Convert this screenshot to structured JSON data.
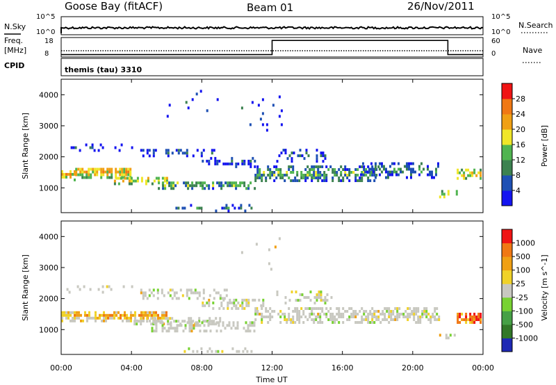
{
  "header": {
    "title_left": "Goose Bay (fitACF)",
    "title_center": "Beam 01",
    "title_right": "26/Nov/2011"
  },
  "top_panels": {
    "nsky": {
      "label": "N.Sky",
      "left_ticks": [
        "10^5",
        "10^0"
      ],
      "right_label": "N.Search",
      "right_ticks": [
        "10^5",
        "10^0"
      ]
    },
    "freq": {
      "label_line1": "Freq.",
      "label_line2": "[MHz]",
      "left_ticks": [
        "18",
        "8"
      ],
      "right_label": "Nave",
      "right_ticks": [
        "60",
        "0"
      ],
      "steps": [
        {
          "start_hr": 0,
          "end_hr": 12,
          "level": 0.12
        },
        {
          "start_hr": 12,
          "end_hr": 22,
          "level": 0.85
        },
        {
          "start_hr": 22,
          "end_hr": 24,
          "level": 0.12
        }
      ]
    },
    "cpid": {
      "label": "CPID",
      "text": "themis (tau) 3310"
    }
  },
  "chart_data": [
    {
      "type": "heatmap",
      "name": "power",
      "ylabel": "Slant Range [km]",
      "ylim": [
        200,
        4500
      ],
      "yticks": [
        "1000",
        "2000",
        "3000",
        "4000"
      ],
      "xlim": [
        0,
        24
      ],
      "colorbar": {
        "label": "Power [dB]",
        "ticks": [
          "4",
          "8",
          "12",
          "16",
          "20",
          "24",
          "28"
        ],
        "colors": [
          "#1414f0",
          "#1e50b4",
          "#3c8250",
          "#50b450",
          "#f0e628",
          "#f0a014",
          "#f07814",
          "#f01414"
        ]
      },
      "bands": [
        {
          "start_hr": 0.0,
          "end_hr": 0.8,
          "center_km": 1450,
          "width_km": 300,
          "density": 0.9,
          "level": 0.7
        },
        {
          "start_hr": 0.8,
          "end_hr": 4.0,
          "center_km": 1550,
          "width_km": 350,
          "density": 0.85,
          "level": 0.65
        },
        {
          "start_hr": 3.0,
          "end_hr": 6.0,
          "center_km": 1300,
          "width_km": 250,
          "density": 0.8,
          "level": 0.6
        },
        {
          "start_hr": 5.5,
          "end_hr": 11.0,
          "center_km": 1150,
          "width_km": 250,
          "density": 0.7,
          "level": 0.45
        },
        {
          "start_hr": 4.5,
          "end_hr": 9.0,
          "center_km": 2200,
          "width_km": 250,
          "density": 0.45,
          "level": 0.2
        },
        {
          "start_hr": 0.3,
          "end_hr": 4.0,
          "center_km": 2350,
          "width_km": 200,
          "density": 0.25,
          "level": 0.15
        },
        {
          "start_hr": 8.0,
          "end_hr": 11.0,
          "center_km": 1900,
          "width_km": 350,
          "density": 0.35,
          "level": 0.2
        },
        {
          "start_hr": 11.0,
          "end_hr": 18.0,
          "center_km": 1500,
          "width_km": 450,
          "density": 0.75,
          "level": 0.4
        },
        {
          "start_hr": 17.0,
          "end_hr": 21.5,
          "center_km": 1600,
          "width_km": 450,
          "density": 0.55,
          "level": 0.3
        },
        {
          "start_hr": 12.0,
          "end_hr": 15.0,
          "center_km": 2100,
          "width_km": 400,
          "density": 0.25,
          "level": 0.2
        },
        {
          "start_hr": 21.5,
          "end_hr": 22.5,
          "center_km": 850,
          "width_km": 200,
          "density": 0.6,
          "level": 0.55
        },
        {
          "start_hr": 22.5,
          "end_hr": 24.0,
          "center_km": 1500,
          "width_km": 300,
          "density": 0.7,
          "level": 0.6
        },
        {
          "start_hr": 6.5,
          "end_hr": 11.0,
          "center_km": 400,
          "width_km": 200,
          "density": 0.35,
          "level": 0.25
        },
        {
          "start_hr": 10.0,
          "end_hr": 12.5,
          "center_km": 3500,
          "width_km": 1200,
          "density": 0.06,
          "level": 0.15
        },
        {
          "start_hr": 6.0,
          "end_hr": 9.0,
          "center_km": 3800,
          "width_km": 900,
          "density": 0.04,
          "level": 0.15
        }
      ]
    },
    {
      "type": "heatmap",
      "name": "velocity",
      "ylabel": "Slant Range [km]",
      "ylim": [
        200,
        4500
      ],
      "yticks": [
        "1000",
        "2000",
        "3000",
        "4000"
      ],
      "xlim": [
        0,
        24
      ],
      "xticks": [
        "00:00",
        "04:00",
        "08:00",
        "12:00",
        "16:00",
        "20:00",
        "00:00"
      ],
      "xlabel": "Time UT",
      "colorbar": {
        "label": "Velocity [m s^-1]",
        "ticks": [
          "1000",
          "500",
          "100",
          "25",
          "-25",
          "-100",
          "-500",
          "-1000"
        ],
        "colors": [
          "#1e28b4",
          "#327828",
          "#46a046",
          "#78d232",
          "#c8c8c0",
          "#f0d228",
          "#f0a014",
          "#f07814",
          "#f01414"
        ]
      },
      "bands": [
        {
          "start_hr": 0.0,
          "end_hr": 6.0,
          "center_km": 1500,
          "width_km": 350,
          "density": 0.85,
          "level": 0.7
        },
        {
          "start_hr": 4.0,
          "end_hr": 9.0,
          "center_km": 1350,
          "width_km": 250,
          "density": 0.6,
          "level": 0.45
        },
        {
          "start_hr": 5.0,
          "end_hr": 11.0,
          "center_km": 1150,
          "width_km": 300,
          "density": 0.6,
          "level": 0.5
        },
        {
          "start_hr": 4.5,
          "end_hr": 9.5,
          "center_km": 2200,
          "width_km": 300,
          "density": 0.45,
          "level": 0.5
        },
        {
          "start_hr": 0.3,
          "end_hr": 4.0,
          "center_km": 2350,
          "width_km": 200,
          "density": 0.2,
          "level": 0.5
        },
        {
          "start_hr": 8.0,
          "end_hr": 11.5,
          "center_km": 1900,
          "width_km": 350,
          "density": 0.45,
          "level": 0.5
        },
        {
          "start_hr": 11.0,
          "end_hr": 21.5,
          "center_km": 1500,
          "width_km": 450,
          "density": 0.7,
          "level": 0.52
        },
        {
          "start_hr": 12.0,
          "end_hr": 15.5,
          "center_km": 2100,
          "width_km": 400,
          "density": 0.3,
          "level": 0.52
        },
        {
          "start_hr": 22.5,
          "end_hr": 24.0,
          "center_km": 1450,
          "width_km": 350,
          "density": 0.75,
          "level": 0.9
        },
        {
          "start_hr": 21.5,
          "end_hr": 22.5,
          "center_km": 850,
          "width_km": 150,
          "density": 0.5,
          "level": 0.5
        },
        {
          "start_hr": 6.5,
          "end_hr": 11.0,
          "center_km": 350,
          "width_km": 200,
          "density": 0.3,
          "level": 0.4
        },
        {
          "start_hr": 10.0,
          "end_hr": 12.5,
          "center_km": 3500,
          "width_km": 1200,
          "density": 0.05,
          "level": 0.35
        }
      ]
    }
  ]
}
